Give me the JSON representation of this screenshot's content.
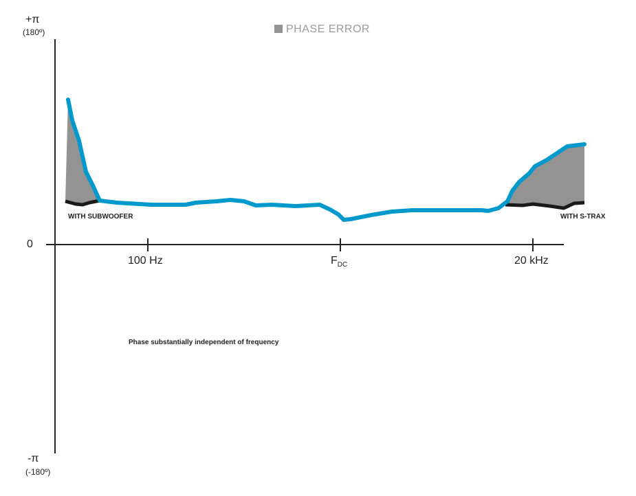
{
  "chart_data": {
    "type": "line",
    "title": "",
    "legend": {
      "label": "PHASE ERROR",
      "color": "#939393",
      "placement": "top"
    },
    "y_axis": {
      "top_label": "+π",
      "top_sub": "(180º)",
      "zero_label": "0",
      "bottom_label": "-π",
      "bottom_sub": "(-180º)",
      "ylim": [
        "-π",
        "+π"
      ]
    },
    "x_axis": {
      "scale": "log",
      "tick_labels": [
        "100 Hz",
        "F",
        "20 kHz"
      ],
      "fdc_subscript": "DC"
    },
    "series": [
      {
        "name": "",
        "color": "#0099cc",
        "description_shape": "phase curve"
      },
      {
        "name": "",
        "color": "#1a1a1a"
      }
    ],
    "annotations": {
      "left": "WITH SUBWOOFER",
      "right": "WITH S-TRAX",
      "center": "Phase substantially independent of frequency"
    },
    "grid": false
  }
}
